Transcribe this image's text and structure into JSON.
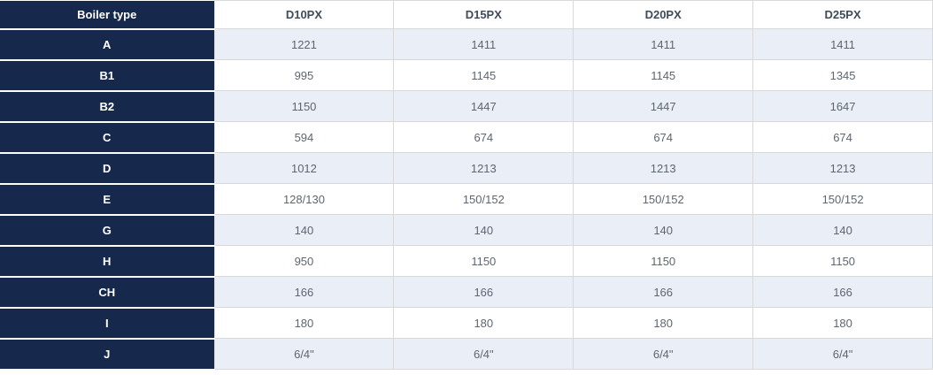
{
  "chart_data": {
    "type": "table",
    "header": {
      "label_column": "Boiler type",
      "columns": [
        "D10PX",
        "D15PX",
        "D20PX",
        "D25PX"
      ]
    },
    "rows": [
      {
        "label": "A",
        "values": [
          "1221",
          "1411",
          "1411",
          "1411"
        ]
      },
      {
        "label": "B1",
        "values": [
          "995",
          "1145",
          "1145",
          "1345"
        ]
      },
      {
        "label": "B2",
        "values": [
          "1150",
          "1447",
          "1447",
          "1647"
        ]
      },
      {
        "label": "C",
        "values": [
          "594",
          "674",
          "674",
          "674"
        ]
      },
      {
        "label": "D",
        "values": [
          "1012",
          "1213",
          "1213",
          "1213"
        ]
      },
      {
        "label": "E",
        "values": [
          "128/130",
          "150/152",
          "150/152",
          "150/152"
        ]
      },
      {
        "label": "G",
        "values": [
          "140",
          "140",
          "140",
          "140"
        ]
      },
      {
        "label": "H",
        "values": [
          "950",
          "1150",
          "1150",
          "1150"
        ]
      },
      {
        "label": "CH",
        "values": [
          "166",
          "166",
          "166",
          "166"
        ]
      },
      {
        "label": "I",
        "values": [
          "180",
          "180",
          "180",
          "180"
        ]
      },
      {
        "label": "J",
        "values": [
          "6/4\"",
          "6/4\"",
          "6/4\"",
          "6/4\""
        ]
      }
    ],
    "layout_hints": {
      "striped": true,
      "stripe_rows": "A, B2, D, G, CH, J",
      "first_column_style": "dark navy, bold white text"
    }
  },
  "colors": {
    "dark_header": "#16294d",
    "stripe_row": "#e9eef7",
    "plain_row": "#ffffff",
    "border": "#d9d9d9",
    "column_header_text": "#404b5a",
    "cell_text": "#5f6670",
    "label_text": "#ffffff"
  }
}
